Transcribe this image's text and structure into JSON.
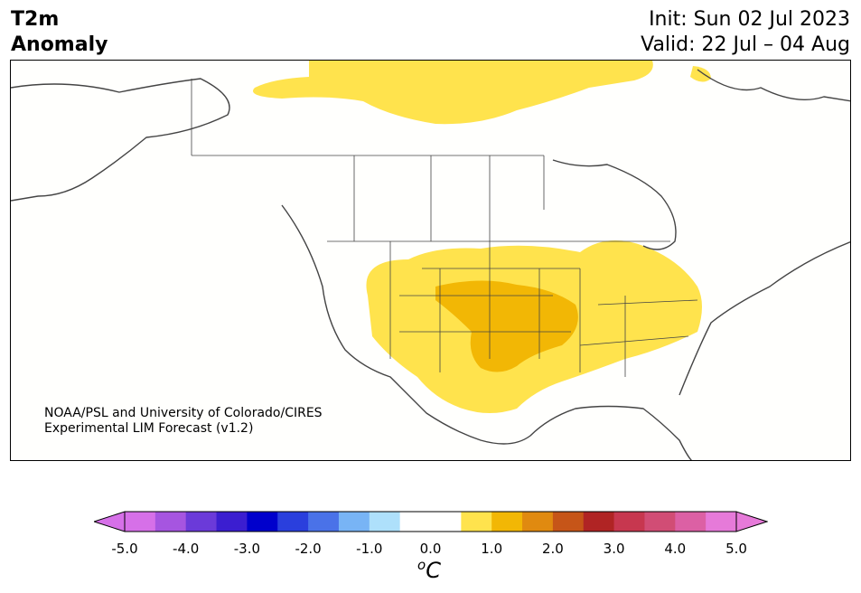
{
  "header": {
    "title_line1": "T2m",
    "title_line2": "Anomaly",
    "init": "Init: Sun 02 Jul 2023",
    "valid": "Valid: 22 Jul – 04 Aug"
  },
  "credit": {
    "line1": "NOAA/PSL and University of Colorado/CIRES",
    "line2": "Experimental LIM Forecast (v1.2)"
  },
  "colorbar": {
    "unit": "C",
    "unit_prefix": "o",
    "ticks": [
      "-5.0",
      "-4.0",
      "-3.0",
      "-2.0",
      "-1.0",
      "0.0",
      "1.0",
      "2.0",
      "3.0",
      "4.0",
      "5.0"
    ],
    "colors": [
      "#d670e8",
      "#a655e0",
      "#6b3ad9",
      "#3b1ed0",
      "#0000cc",
      "#2a3fdd",
      "#4a72e8",
      "#78b4f5",
      "#aee0fb",
      "#ffffff",
      "#ffffff",
      "#ffe34d",
      "#f2b705",
      "#e08a10",
      "#c65518",
      "#b02424",
      "#c7374f",
      "#d14d75",
      "#dc60a4",
      "#e67ad9"
    ],
    "under_color": "#d670e8",
    "over_color": "#e67ad9"
  },
  "map": {
    "anomaly_colors": {
      "level1": "#ffe34d",
      "level2": "#f2b705"
    },
    "coast_color": "#444444"
  }
}
